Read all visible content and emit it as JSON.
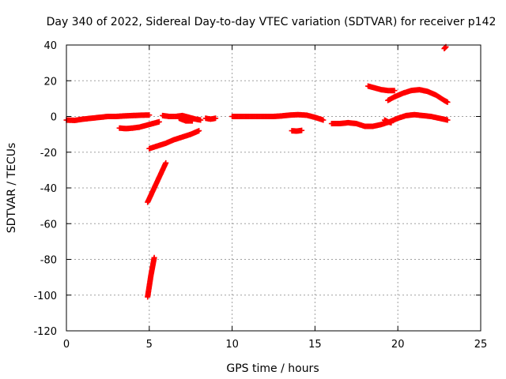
{
  "chart_data": {
    "type": "scatter",
    "title": "Day 340 of 2022, Sidereal Day-to-day VTEC variation (SDTVAR) for receiver p142",
    "xlabel": "GPS time / hours",
    "ylabel": "SDTVAR / TECUs",
    "xlim": [
      0,
      25
    ],
    "ylim": [
      -120,
      40
    ],
    "xticks": [
      0,
      5,
      10,
      15,
      20,
      25
    ],
    "yticks": [
      -120,
      -100,
      -80,
      -60,
      -40,
      -20,
      0,
      20,
      40
    ],
    "grid": true,
    "marker": "plus",
    "color": "#ff0000",
    "series": [
      {
        "name": "seg1",
        "points": [
          [
            0.0,
            -2
          ],
          [
            0.5,
            -2.2
          ],
          [
            1.0,
            -1.5
          ],
          [
            1.5,
            -1
          ],
          [
            2.0,
            -0.5
          ],
          [
            2.5,
            0
          ],
          [
            3.0,
            0
          ],
          [
            3.5,
            0.3
          ],
          [
            4.0,
            0.5
          ],
          [
            4.5,
            0.7
          ],
          [
            5.0,
            0.8
          ]
        ]
      },
      {
        "name": "seg2",
        "points": [
          [
            3.2,
            -6.5
          ],
          [
            3.6,
            -6.8
          ],
          [
            4.0,
            -6.5
          ],
          [
            4.4,
            -6
          ],
          [
            4.8,
            -5
          ],
          [
            5.2,
            -4
          ],
          [
            5.6,
            -3
          ]
        ]
      },
      {
        "name": "seg3",
        "points": [
          [
            5.0,
            -18
          ],
          [
            5.5,
            -16.5
          ],
          [
            6.0,
            -15
          ],
          [
            6.5,
            -13
          ],
          [
            7.0,
            -11.5
          ],
          [
            7.5,
            -10
          ],
          [
            8.0,
            -8
          ]
        ]
      },
      {
        "name": "seg4",
        "points": [
          [
            5.8,
            0.5
          ],
          [
            6.2,
            0
          ],
          [
            6.6,
            0
          ],
          [
            7.0,
            0.5
          ],
          [
            7.4,
            -0.5
          ],
          [
            7.8,
            -1.5
          ],
          [
            8.1,
            -2
          ]
        ]
      },
      {
        "name": "seg5",
        "points": [
          [
            6.8,
            -1
          ],
          [
            7.2,
            -2.5
          ],
          [
            7.6,
            -2.5
          ]
        ]
      },
      {
        "name": "seg6",
        "points": [
          [
            8.4,
            -1
          ],
          [
            8.7,
            -1.5
          ],
          [
            9.0,
            -1
          ]
        ]
      },
      {
        "name": "seg7",
        "points": [
          [
            10.0,
            0
          ],
          [
            11.0,
            0
          ],
          [
            12.0,
            0
          ],
          [
            12.5,
            0
          ],
          [
            13.0,
            0.3
          ],
          [
            13.5,
            0.8
          ],
          [
            14.0,
            1
          ],
          [
            14.5,
            0.7
          ],
          [
            15.0,
            -0.5
          ],
          [
            15.5,
            -2
          ]
        ]
      },
      {
        "name": "seg8",
        "points": [
          [
            13.6,
            -8
          ],
          [
            13.9,
            -8.2
          ],
          [
            14.2,
            -7.8
          ]
        ]
      },
      {
        "name": "seg9",
        "points": [
          [
            16.0,
            -4
          ],
          [
            16.5,
            -4
          ],
          [
            17.0,
            -3.5
          ],
          [
            17.5,
            -4
          ],
          [
            18.0,
            -5.5
          ],
          [
            18.5,
            -5.5
          ],
          [
            19.0,
            -4.5
          ],
          [
            19.5,
            -3
          ],
          [
            20.0,
            -1
          ],
          [
            20.5,
            0.5
          ],
          [
            21.0,
            1
          ],
          [
            21.5,
            0.5
          ],
          [
            22.0,
            0
          ],
          [
            22.5,
            -1
          ],
          [
            23.0,
            -2
          ]
        ]
      },
      {
        "name": "seg10",
        "points": [
          [
            19.2,
            -2
          ],
          [
            19.4,
            -3
          ],
          [
            19.6,
            -3.5
          ]
        ]
      },
      {
        "name": "seg11",
        "points": [
          [
            18.2,
            17
          ],
          [
            18.6,
            16
          ],
          [
            19.0,
            15
          ],
          [
            19.4,
            14.5
          ],
          [
            19.8,
            14.5
          ]
        ]
      },
      {
        "name": "seg12",
        "points": [
          [
            19.4,
            9
          ],
          [
            19.8,
            11
          ],
          [
            20.3,
            13
          ],
          [
            20.8,
            14.5
          ],
          [
            21.3,
            15
          ],
          [
            21.8,
            14
          ],
          [
            22.3,
            12
          ],
          [
            22.8,
            9
          ],
          [
            23.0,
            8
          ]
        ]
      },
      {
        "name": "seg13",
        "points": [
          [
            22.8,
            38
          ],
          [
            22.9,
            39
          ]
        ]
      },
      {
        "name": "seg14",
        "points": [
          [
            4.9,
            -48
          ],
          [
            5.1,
            -44
          ],
          [
            5.4,
            -38
          ],
          [
            5.7,
            -32
          ],
          [
            6.0,
            -26
          ]
        ]
      },
      {
        "name": "seg15",
        "points": [
          [
            4.9,
            -101
          ],
          [
            5.0,
            -95
          ],
          [
            5.1,
            -89
          ],
          [
            5.2,
            -84
          ],
          [
            5.3,
            -79
          ]
        ]
      }
    ]
  }
}
